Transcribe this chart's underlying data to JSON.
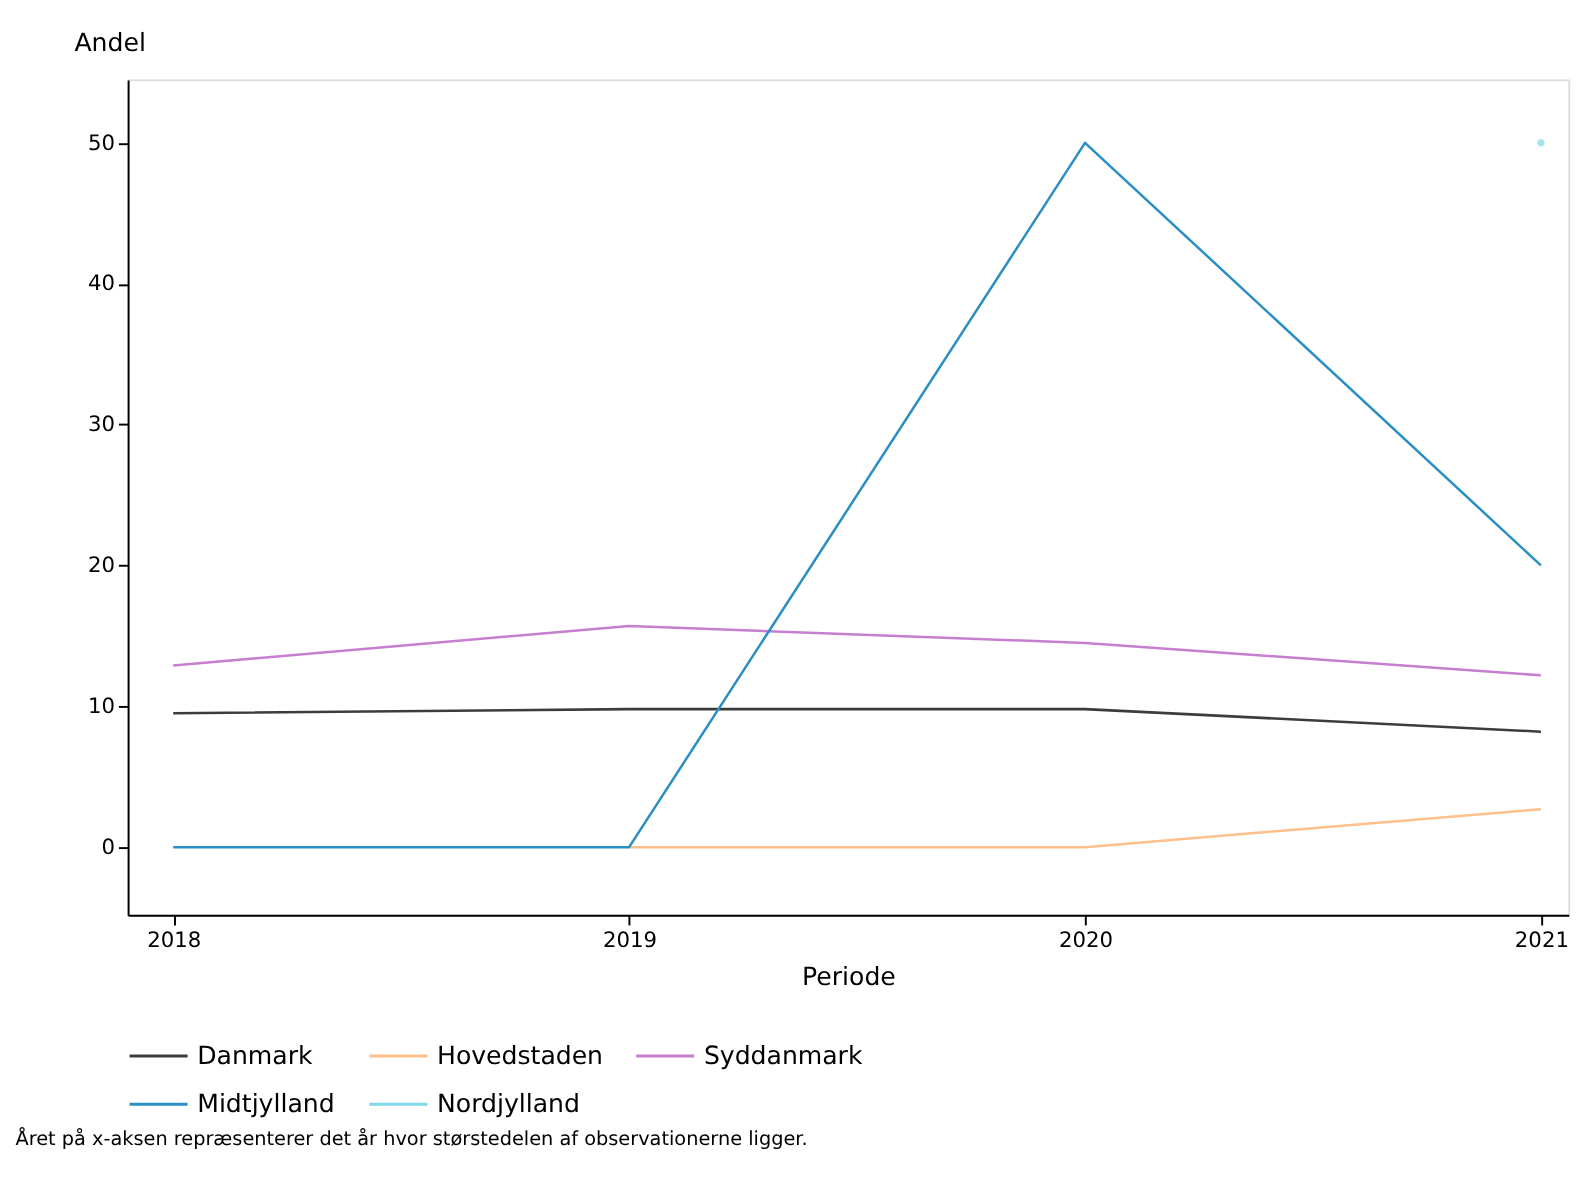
{
  "chart_data": {
    "type": "line",
    "xlabel": "Periode",
    "ylabel": "Andel",
    "x": [
      2018,
      2019,
      2020,
      2021
    ],
    "xlim": [
      2017.9,
      2021.06
    ],
    "xticks": [
      2018,
      2019,
      2020,
      2021
    ],
    "ylim": [
      -4.8,
      54.5
    ],
    "yticks": [
      0,
      10,
      20,
      30,
      40,
      50
    ],
    "series": [
      {
        "name": "Danmark",
        "color": "#3c3c3c",
        "values": [
          9.5,
          9.8,
          9.8,
          8.2
        ]
      },
      {
        "name": "Hovedstaden",
        "color": "#fdc08a",
        "values": [
          null,
          0,
          0,
          2.7
        ]
      },
      {
        "name": "Syddanmark",
        "color": "#c57fce",
        "values": [
          12.9,
          15.7,
          14.5,
          12.2
        ]
      },
      {
        "name": "Midtjylland",
        "color": "#2b8fc4",
        "values": [
          0,
          0,
          50,
          20
        ]
      },
      {
        "name": "Nordjylland",
        "color": "#7fd8e8",
        "values": [
          null,
          null,
          null,
          50
        ]
      }
    ],
    "legend": "bottom",
    "grid": false,
    "marker": "none",
    "annotations": [
      "Året på x-aksen repræsenterer det år hvor størstedelen af observationerne ligger."
    ]
  }
}
